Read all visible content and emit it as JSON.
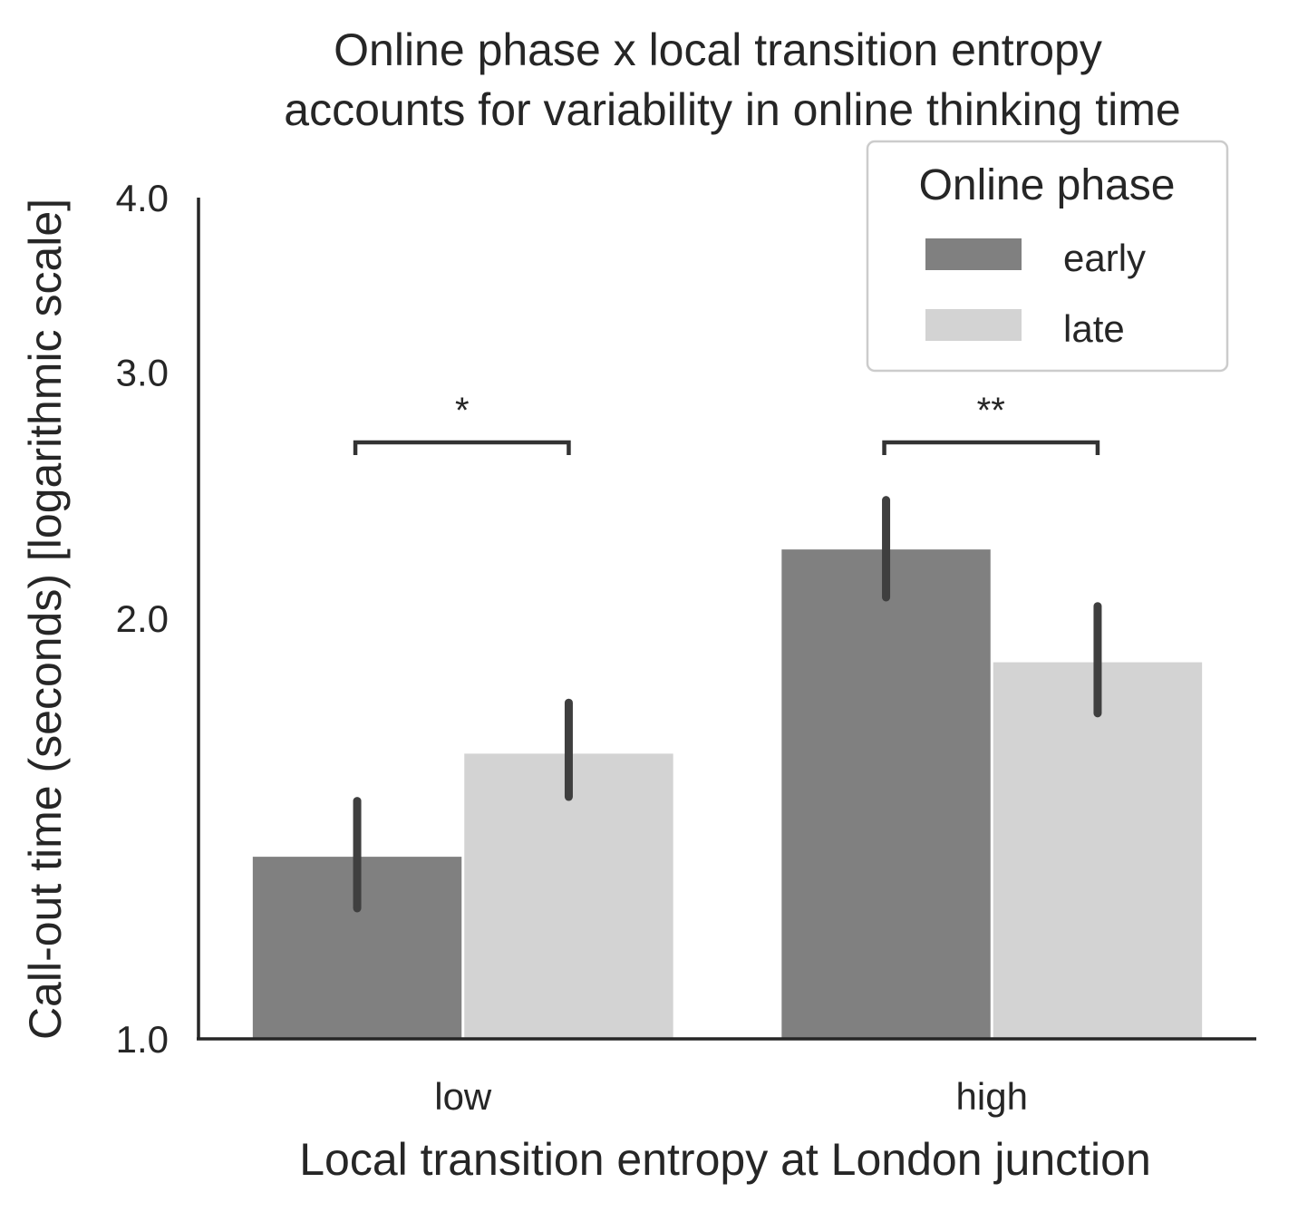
{
  "chart_data": {
    "type": "bar",
    "title": "Online phase x local transition entropy\naccounts for variability in online thinking time",
    "xlabel": "Local transition entropy at London junction",
    "ylabel": "Call-out time (seconds) [logarithmic scale]",
    "yscale": "log",
    "ylim": [
      1.0,
      4.0
    ],
    "yticks": [
      "1.0",
      "2.0",
      "3.0",
      "4.0"
    ],
    "categories": [
      "low",
      "high"
    ],
    "series": [
      {
        "name": "early",
        "color": "#808080",
        "values": [
          1.35,
          2.24
        ],
        "ci": [
          [
            1.24,
            1.48
          ],
          [
            2.07,
            2.43
          ]
        ]
      },
      {
        "name": "late",
        "color": "#d3d3d3",
        "values": [
          1.6,
          1.86
        ],
        "ci": [
          [
            1.49,
            1.74
          ],
          [
            1.71,
            2.04
          ]
        ]
      }
    ],
    "legend": {
      "title": "Online phase",
      "position": "top-right"
    },
    "significance": [
      {
        "category": "low",
        "label": "*"
      },
      {
        "category": "high",
        "label": "**"
      }
    ],
    "grid": false,
    "errorbar_color": "#3f3f3f"
  }
}
